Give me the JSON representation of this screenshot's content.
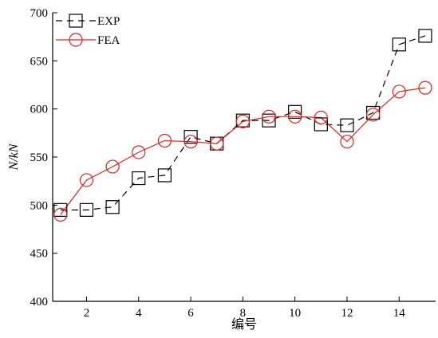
{
  "chart_data": {
    "type": "line",
    "xlabel": "编号",
    "ylabel": "N/kN",
    "xlim": [
      0.7,
      15.4
    ],
    "ylim": [
      400,
      700
    ],
    "xticks": [
      2,
      4,
      6,
      8,
      10,
      12,
      14
    ],
    "yticks": [
      400,
      450,
      500,
      550,
      600,
      650,
      700
    ],
    "grid": false,
    "legend": "top-left",
    "x": [
      1,
      2,
      3,
      4,
      5,
      6,
      7,
      8,
      9,
      10,
      11,
      12,
      13,
      14,
      15
    ],
    "series": [
      {
        "name": "EXP",
        "color": "#000000",
        "marker": "square",
        "line": "dashed",
        "values": [
          495,
          495,
          498,
          528,
          531,
          571,
          564,
          588,
          588,
          597,
          584,
          583,
          596,
          667,
          676
        ]
      },
      {
        "name": "FEA",
        "color": "#e8201c",
        "marker": "circle",
        "line": "solid",
        "values": [
          490,
          526,
          540,
          555,
          567,
          566,
          564,
          587,
          592,
          592,
          591,
          566,
          594,
          618,
          622
        ]
      }
    ]
  }
}
